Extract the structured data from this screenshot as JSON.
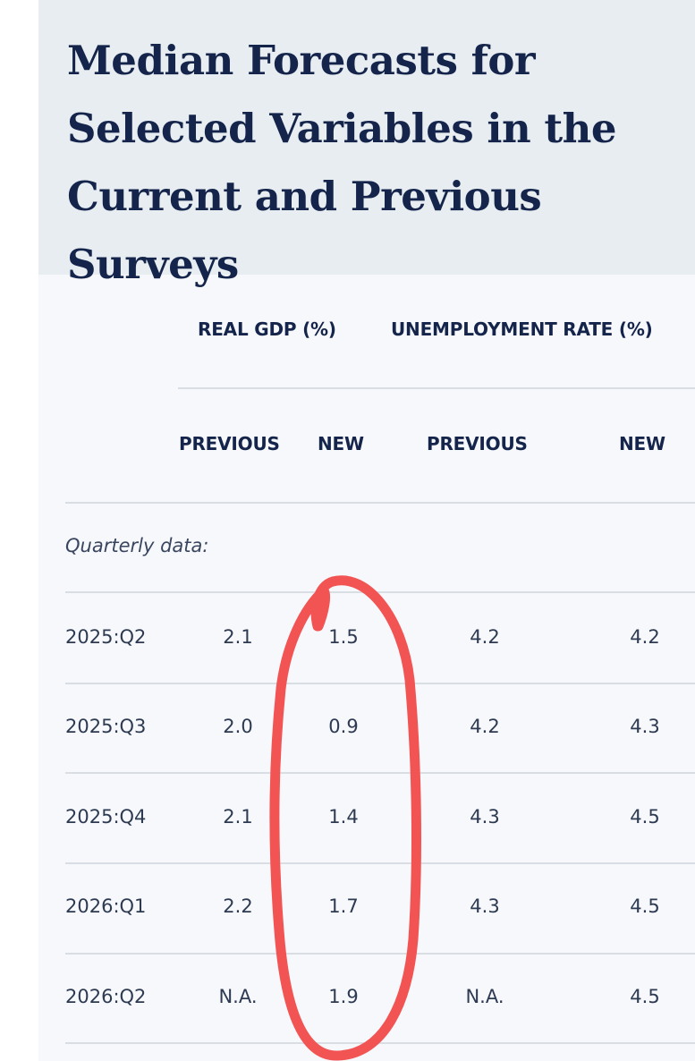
{
  "title": "Median Forecasts for Selected Variables in the Current and Previous Surveys",
  "headers": {
    "group_gdp": "REAL GDP (%)",
    "group_unemployment": "UNEMPLOYMENT RATE (%)",
    "gdp_previous": "PREVIOUS",
    "gdp_new": "NEW",
    "unemp_previous": "PREVIOUS",
    "unemp_new": "NEW"
  },
  "section_label": "Quarterly data:",
  "rows": [
    {
      "period": "2025:Q2",
      "gdp_previous": "2.1",
      "gdp_new": "1.5",
      "unemp_previous": "4.2",
      "unemp_new": "4.2"
    },
    {
      "period": "2025:Q3",
      "gdp_previous": "2.0",
      "gdp_new": "0.9",
      "unemp_previous": "4.2",
      "unemp_new": "4.3"
    },
    {
      "period": "2025:Q4",
      "gdp_previous": "2.1",
      "gdp_new": "1.4",
      "unemp_previous": "4.3",
      "unemp_new": "4.5"
    },
    {
      "period": "2026:Q1",
      "gdp_previous": "2.2",
      "gdp_new": "1.7",
      "unemp_previous": "4.3",
      "unemp_new": "4.5"
    },
    {
      "period": "2026:Q2",
      "gdp_previous": "N.A.",
      "gdp_new": "1.9",
      "unemp_previous": "N.A.",
      "unemp_new": "4.5"
    }
  ],
  "annotation_color": "#f25454"
}
